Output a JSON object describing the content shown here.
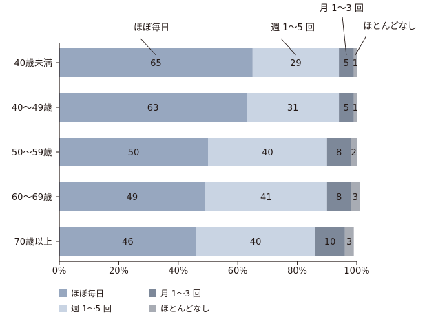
{
  "chart_data": {
    "type": "bar",
    "orientation": "horizontal",
    "stacked": true,
    "categories": [
      "40歳未満",
      "40〜49歳",
      "50〜59歳",
      "60〜69歳",
      "70歳以上"
    ],
    "series": [
      {
        "name": "ほぼ毎日",
        "values": [
          65,
          63,
          50,
          49,
          46
        ],
        "color": "#97a7bf"
      },
      {
        "name": "週 1〜5 回",
        "values": [
          29,
          31,
          40,
          41,
          40
        ],
        "color": "#c9d4e3"
      },
      {
        "name": "月 1〜3 回",
        "values": [
          5,
          5,
          8,
          8,
          10
        ],
        "color": "#7d8899"
      },
      {
        "name": "ほとんどなし",
        "values": [
          1,
          1,
          2,
          3,
          3
        ],
        "color": "#a8acb4"
      }
    ],
    "x_ticks": [
      "0%",
      "20%",
      "40%",
      "60%",
      "80%",
      "100%"
    ],
    "xlim": [
      0,
      100
    ],
    "grid": false,
    "legend_position": "bottom-left"
  }
}
